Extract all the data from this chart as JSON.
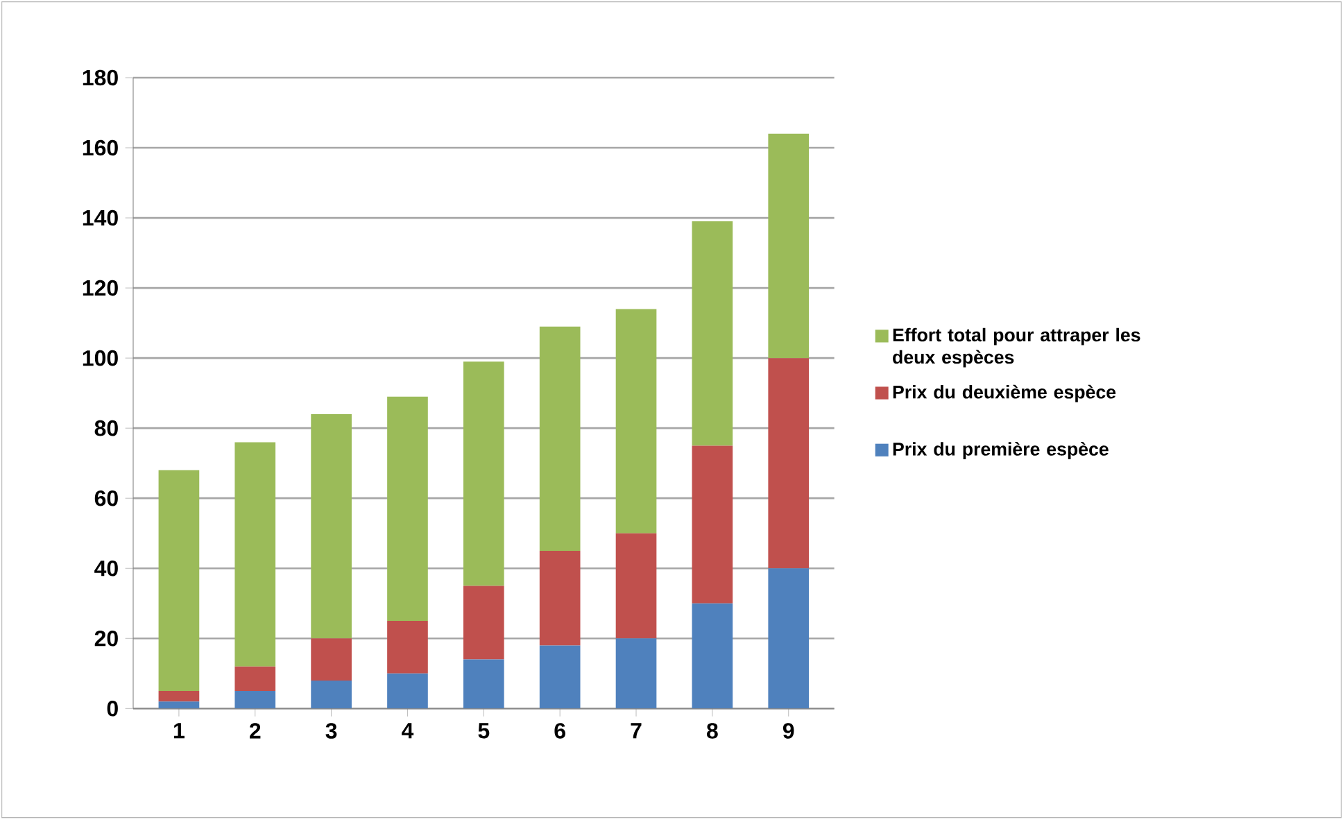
{
  "chart_data": {
    "type": "bar",
    "stacked": true,
    "categories": [
      "1",
      "2",
      "3",
      "4",
      "5",
      "6",
      "7",
      "8",
      "9"
    ],
    "series": [
      {
        "name": "Prix du première espèce",
        "color": "#4f81bd",
        "values": [
          2,
          5,
          8,
          10,
          14,
          18,
          20,
          30,
          40
        ]
      },
      {
        "name": "Prix du deuxième espèce",
        "color": "#c0504d",
        "values": [
          3,
          7,
          12,
          15,
          21,
          27,
          30,
          45,
          60
        ]
      },
      {
        "name": "Effort total pour attraper les deux espèces",
        "color": "#9bbb59",
        "values": [
          63,
          64,
          64,
          64,
          64,
          64,
          64,
          64,
          64
        ]
      }
    ],
    "ylim": [
      0,
      180
    ],
    "yticks": [
      0,
      20,
      40,
      60,
      80,
      100,
      120,
      140,
      160,
      180
    ],
    "grid": "y",
    "legend": "right"
  }
}
